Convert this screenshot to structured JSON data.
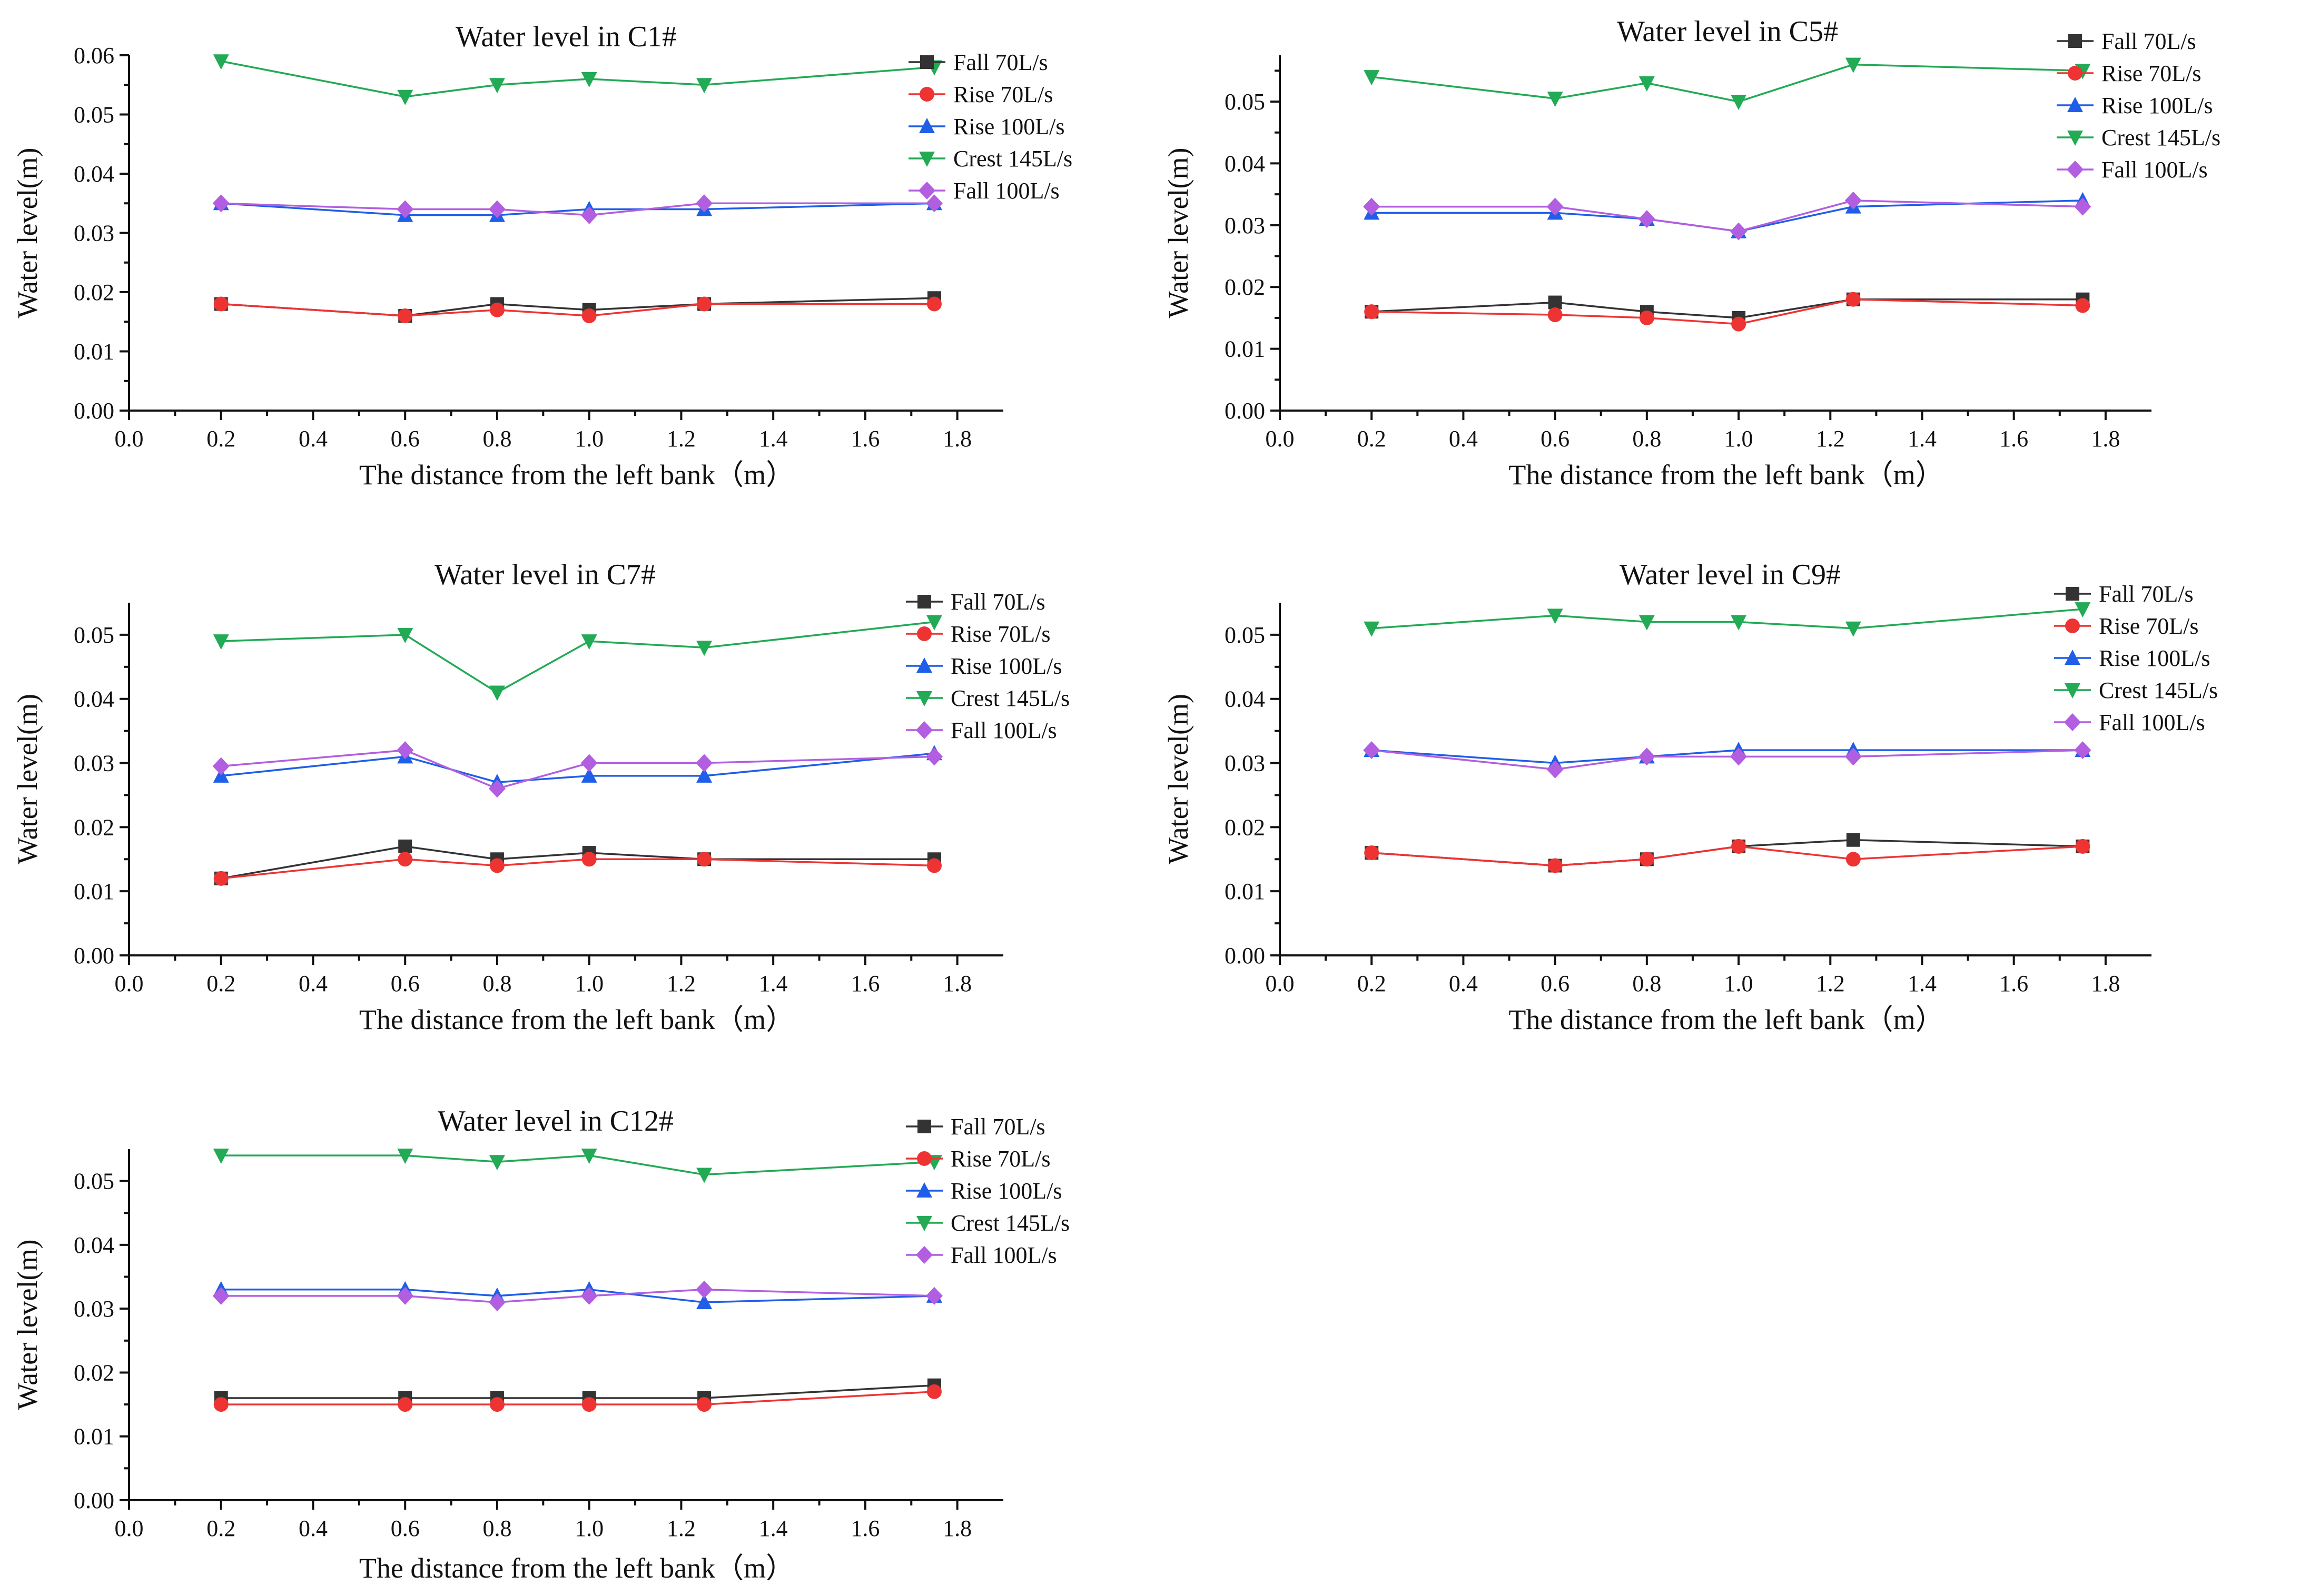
{
  "colors": {
    "fall70": "#333333",
    "rise70": "#ee3333",
    "rise100": "#1f5ee8",
    "crest145": "#22aa55",
    "fall100": "#b25ee0"
  },
  "series_defs": [
    {
      "key": "fall70",
      "name": "Fall 70L/s",
      "marker": "square"
    },
    {
      "key": "rise70",
      "name": "Rise 70L/s",
      "marker": "circle"
    },
    {
      "key": "rise100",
      "name": "Rise 100L/s",
      "marker": "triangle-up"
    },
    {
      "key": "crest145",
      "name": "Crest 145L/s",
      "marker": "triangle-down"
    },
    {
      "key": "fall100",
      "name": "Fall 100L/s",
      "marker": "diamond"
    }
  ],
  "chart_data": [
    {
      "type": "line",
      "title": "Water level in C1#",
      "xlabel": "The distance from the left bank（m）",
      "ylabel": "Water level(m)",
      "xlim": [
        0.0,
        1.9
      ],
      "ylim": [
        0.0,
        0.06
      ],
      "xticks": [
        "0.0",
        "0.2",
        "0.4",
        "0.6",
        "0.8",
        "1.0",
        "1.2",
        "1.4",
        "1.6",
        "1.8"
      ],
      "yticks": [
        "0.00",
        "0.01",
        "0.02",
        "0.03",
        "0.04",
        "0.05",
        "0.06"
      ],
      "x": [
        0.2,
        0.6,
        0.8,
        1.0,
        1.25,
        1.75
      ],
      "series": [
        {
          "key": "fall70",
          "name": "Fall 70L/s",
          "values": [
            0.018,
            0.016,
            0.018,
            0.017,
            0.018,
            0.019
          ]
        },
        {
          "key": "rise70",
          "name": "Rise 70L/s",
          "values": [
            0.018,
            0.016,
            0.017,
            0.016,
            0.018,
            0.018
          ]
        },
        {
          "key": "rise100",
          "name": "Rise 100L/s",
          "values": [
            0.035,
            0.033,
            0.033,
            0.034,
            0.034,
            0.035
          ]
        },
        {
          "key": "crest145",
          "name": "Crest 145L/s",
          "values": [
            0.059,
            0.053,
            0.055,
            0.056,
            0.055,
            0.058
          ]
        },
        {
          "key": "fall100",
          "name": "Fall 100L/s",
          "values": [
            0.035,
            0.034,
            0.034,
            0.033,
            0.035,
            0.035
          ]
        }
      ]
    },
    {
      "type": "line",
      "title": "Water level in C5#",
      "xlabel": "The distance from the left bank（m）",
      "ylabel": "Water level(m)",
      "xlim": [
        0.0,
        1.9
      ],
      "ylim": [
        0.0,
        0.0575
      ],
      "xticks": [
        "0.0",
        "0.2",
        "0.4",
        "0.6",
        "0.8",
        "1.0",
        "1.2",
        "1.4",
        "1.6",
        "1.8"
      ],
      "yticks": [
        "0.00",
        "0.01",
        "0.02",
        "0.03",
        "0.04",
        "0.05"
      ],
      "x": [
        0.2,
        0.6,
        0.8,
        1.0,
        1.25,
        1.75
      ],
      "series": [
        {
          "key": "fall70",
          "name": "Fall 70L/s",
          "values": [
            0.016,
            0.0175,
            0.016,
            0.015,
            0.018,
            0.018
          ]
        },
        {
          "key": "rise70",
          "name": "Rise 70L/s",
          "values": [
            0.016,
            0.0155,
            0.015,
            0.014,
            0.018,
            0.017
          ]
        },
        {
          "key": "rise100",
          "name": "Rise 100L/s",
          "values": [
            0.032,
            0.032,
            0.031,
            0.029,
            0.033,
            0.034
          ]
        },
        {
          "key": "crest145",
          "name": "Crest 145L/s",
          "values": [
            0.054,
            0.0505,
            0.053,
            0.05,
            0.056,
            0.055
          ]
        },
        {
          "key": "fall100",
          "name": "Fall 100L/s",
          "values": [
            0.033,
            0.033,
            0.031,
            0.029,
            0.034,
            0.033
          ]
        }
      ]
    },
    {
      "type": "line",
      "title": "Water level in C7#",
      "xlabel": "The distance from the left bank（m）",
      "ylabel": "Water level(m)",
      "xlim": [
        0.0,
        1.9
      ],
      "ylim": [
        0.0,
        0.055
      ],
      "xticks": [
        "0.0",
        "0.2",
        "0.4",
        "0.6",
        "0.8",
        "1.0",
        "1.2",
        "1.4",
        "1.6",
        "1.8"
      ],
      "yticks": [
        "0.00",
        "0.01",
        "0.02",
        "0.03",
        "0.04",
        "0.05"
      ],
      "x": [
        0.2,
        0.6,
        0.8,
        1.0,
        1.25,
        1.75
      ],
      "series": [
        {
          "key": "fall70",
          "name": "Fall 70L/s",
          "values": [
            0.012,
            0.017,
            0.015,
            0.016,
            0.015,
            0.015
          ]
        },
        {
          "key": "rise70",
          "name": "Rise 70L/s",
          "values": [
            0.012,
            0.015,
            0.014,
            0.015,
            0.015,
            0.014
          ]
        },
        {
          "key": "rise100",
          "name": "Rise 100L/s",
          "values": [
            0.028,
            0.031,
            0.027,
            0.028,
            0.028,
            0.0315
          ]
        },
        {
          "key": "crest145",
          "name": "Crest 145L/s",
          "values": [
            0.049,
            0.05,
            0.041,
            0.049,
            0.048,
            0.052
          ]
        },
        {
          "key": "fall100",
          "name": "Fall 100L/s",
          "values": [
            0.0295,
            0.032,
            0.026,
            0.03,
            0.03,
            0.031
          ]
        }
      ]
    },
    {
      "type": "line",
      "title": "Water level in C9#",
      "xlabel": "The distance from the left bank（m）",
      "ylabel": "Water level(m)",
      "xlim": [
        0.0,
        1.9
      ],
      "ylim": [
        0.0,
        0.055
      ],
      "xticks": [
        "0.0",
        "0.2",
        "0.4",
        "0.6",
        "0.8",
        "1.0",
        "1.2",
        "1.4",
        "1.6",
        "1.8"
      ],
      "yticks": [
        "0.00",
        "0.01",
        "0.02",
        "0.03",
        "0.04",
        "0.05"
      ],
      "x": [
        0.2,
        0.6,
        0.8,
        1.0,
        1.25,
        1.75
      ],
      "series": [
        {
          "key": "fall70",
          "name": "Fall 70L/s",
          "values": [
            0.016,
            0.014,
            0.015,
            0.017,
            0.018,
            0.017
          ]
        },
        {
          "key": "rise70",
          "name": "Rise 70L/s",
          "values": [
            0.016,
            0.014,
            0.015,
            0.017,
            0.015,
            0.017
          ]
        },
        {
          "key": "rise100",
          "name": "Rise 100L/s",
          "values": [
            0.032,
            0.03,
            0.031,
            0.032,
            0.032,
            0.032
          ]
        },
        {
          "key": "crest145",
          "name": "Crest 145L/s",
          "values": [
            0.051,
            0.053,
            0.052,
            0.052,
            0.051,
            0.054
          ]
        },
        {
          "key": "fall100",
          "name": "Fall 100L/s",
          "values": [
            0.032,
            0.029,
            0.031,
            0.031,
            0.031,
            0.032
          ]
        }
      ]
    },
    {
      "type": "line",
      "title": "Water level in C12#",
      "xlabel": "The distance from the left bank（m）",
      "ylabel": "Water level(m)",
      "xlim": [
        0.0,
        1.9
      ],
      "ylim": [
        0.0,
        0.055
      ],
      "xticks": [
        "0.0",
        "0.2",
        "0.4",
        "0.6",
        "0.8",
        "1.0",
        "1.2",
        "1.4",
        "1.6",
        "1.8"
      ],
      "yticks": [
        "0.00",
        "0.01",
        "0.02",
        "0.03",
        "0.04",
        "0.05"
      ],
      "x": [
        0.2,
        0.6,
        0.8,
        1.0,
        1.25,
        1.75
      ],
      "series": [
        {
          "key": "fall70",
          "name": "Fall 70L/s",
          "values": [
            0.016,
            0.016,
            0.016,
            0.016,
            0.016,
            0.018
          ]
        },
        {
          "key": "rise70",
          "name": "Rise 70L/s",
          "values": [
            0.015,
            0.015,
            0.015,
            0.015,
            0.015,
            0.017
          ]
        },
        {
          "key": "rise100",
          "name": "Rise 100L/s",
          "values": [
            0.033,
            0.033,
            0.032,
            0.033,
            0.031,
            0.032
          ]
        },
        {
          "key": "crest145",
          "name": "Crest 145L/s",
          "values": [
            0.054,
            0.054,
            0.053,
            0.054,
            0.051,
            0.053
          ]
        },
        {
          "key": "fall100",
          "name": "Fall 100L/s",
          "values": [
            0.032,
            0.032,
            0.031,
            0.032,
            0.033,
            0.032
          ]
        }
      ]
    }
  ]
}
